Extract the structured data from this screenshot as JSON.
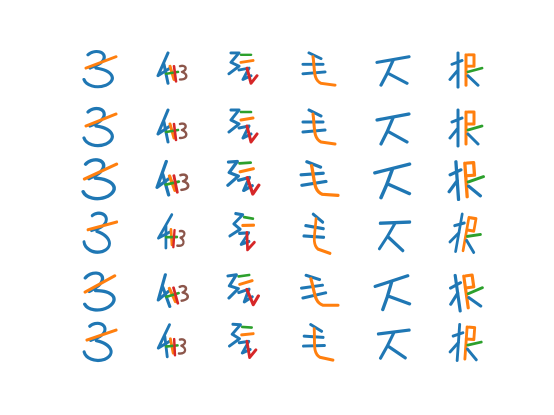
{
  "figure": {
    "background": "#ffffff",
    "rows": 6,
    "columns": 6,
    "stroke_colors": {
      "primary": "#1f77b4",
      "secondary": "#ff7f0e",
      "tertiary": "#2ca02c",
      "quaternary": "#d62728",
      "quinary": "#9467bd",
      "senary": "#8c564b"
    },
    "glyph_columns": [
      {
        "id": "col-1"
      },
      {
        "id": "col-2"
      },
      {
        "id": "col-3"
      },
      {
        "id": "col-4"
      },
      {
        "id": "col-5"
      },
      {
        "id": "col-6"
      }
    ]
  }
}
